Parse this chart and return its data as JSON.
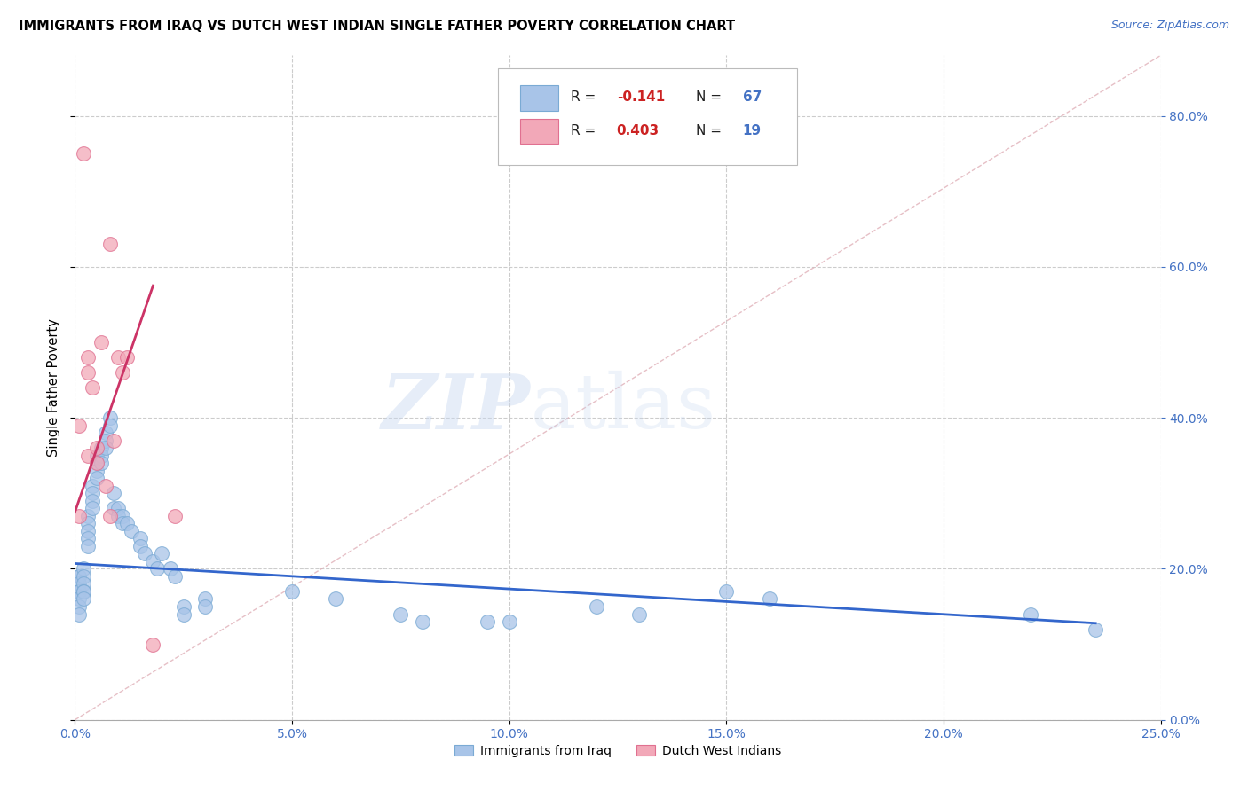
{
  "title": "IMMIGRANTS FROM IRAQ VS DUTCH WEST INDIAN SINGLE FATHER POVERTY CORRELATION CHART",
  "source": "Source: ZipAtlas.com",
  "ylabel": "Single Father Poverty",
  "legend_label_iraq": "Immigrants from Iraq",
  "legend_label_dwi": "Dutch West Indians",
  "R_iraq": -0.141,
  "N_iraq": 67,
  "R_dwi": 0.403,
  "N_dwi": 19,
  "xlim": [
    0.0,
    0.25
  ],
  "ylim": [
    0.0,
    0.88
  ],
  "xticks": [
    0.0,
    0.05,
    0.1,
    0.15,
    0.2,
    0.25
  ],
  "yticks": [
    0.0,
    0.2,
    0.4,
    0.6,
    0.8
  ],
  "color_iraq": "#a8c4e8",
  "color_iraq_edge": "#7aaad4",
  "color_dwi": "#f2a8b8",
  "color_dwi_edge": "#e07090",
  "trendline_iraq_color": "#3366cc",
  "trendline_dwi_color": "#cc3366",
  "diag_line_color": "#e0b0b8",
  "grid_color": "#cccccc",
  "background_color": "#ffffff",
  "iraq_x": [
    0.001,
    0.001,
    0.001,
    0.001,
    0.001,
    0.001,
    0.001,
    0.001,
    0.002,
    0.002,
    0.002,
    0.002,
    0.002,
    0.002,
    0.003,
    0.003,
    0.003,
    0.003,
    0.003,
    0.004,
    0.004,
    0.004,
    0.004,
    0.005,
    0.005,
    0.005,
    0.005,
    0.006,
    0.006,
    0.006,
    0.007,
    0.007,
    0.007,
    0.008,
    0.008,
    0.009,
    0.009,
    0.01,
    0.01,
    0.011,
    0.011,
    0.012,
    0.013,
    0.015,
    0.015,
    0.016,
    0.018,
    0.019,
    0.02,
    0.022,
    0.023,
    0.025,
    0.025,
    0.03,
    0.03,
    0.05,
    0.06,
    0.075,
    0.08,
    0.095,
    0.1,
    0.12,
    0.13,
    0.15,
    0.16,
    0.22,
    0.235
  ],
  "iraq_y": [
    0.19,
    0.19,
    0.18,
    0.17,
    0.17,
    0.16,
    0.15,
    0.14,
    0.2,
    0.19,
    0.18,
    0.17,
    0.17,
    0.16,
    0.27,
    0.26,
    0.25,
    0.24,
    0.23,
    0.31,
    0.3,
    0.29,
    0.28,
    0.35,
    0.34,
    0.33,
    0.32,
    0.36,
    0.35,
    0.34,
    0.38,
    0.37,
    0.36,
    0.4,
    0.39,
    0.3,
    0.28,
    0.28,
    0.27,
    0.27,
    0.26,
    0.26,
    0.25,
    0.24,
    0.23,
    0.22,
    0.21,
    0.2,
    0.22,
    0.2,
    0.19,
    0.15,
    0.14,
    0.16,
    0.15,
    0.17,
    0.16,
    0.14,
    0.13,
    0.13,
    0.13,
    0.15,
    0.14,
    0.17,
    0.16,
    0.14,
    0.12
  ],
  "dwi_x": [
    0.001,
    0.001,
    0.002,
    0.003,
    0.003,
    0.003,
    0.004,
    0.005,
    0.005,
    0.006,
    0.007,
    0.008,
    0.008,
    0.009,
    0.01,
    0.011,
    0.012,
    0.018,
    0.023
  ],
  "dwi_y": [
    0.39,
    0.27,
    0.75,
    0.46,
    0.48,
    0.35,
    0.44,
    0.34,
    0.36,
    0.5,
    0.31,
    0.63,
    0.27,
    0.37,
    0.48,
    0.46,
    0.48,
    0.1,
    0.27
  ],
  "iraq_trend_x": [
    0.0,
    0.235
  ],
  "iraq_trend_y": [
    0.207,
    0.128
  ],
  "dwi_trend_x": [
    0.0,
    0.018
  ],
  "dwi_trend_y": [
    0.275,
    0.575
  ]
}
